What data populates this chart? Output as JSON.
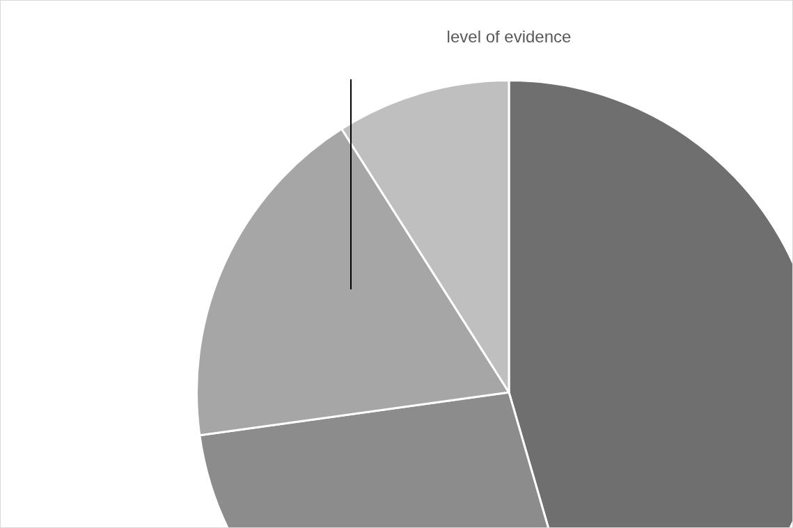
{
  "chart_data": {
    "type": "pie",
    "title": "level of evidence",
    "categories": [
      null,
      null,
      null,
      null
    ],
    "values": [
      45.5,
      27.3,
      18.2,
      9.0
    ],
    "colors": [
      "#6f6f6f",
      "#8c8c8c",
      "#a6a6a6",
      "#bfbfbf"
    ],
    "legend": false
  }
}
